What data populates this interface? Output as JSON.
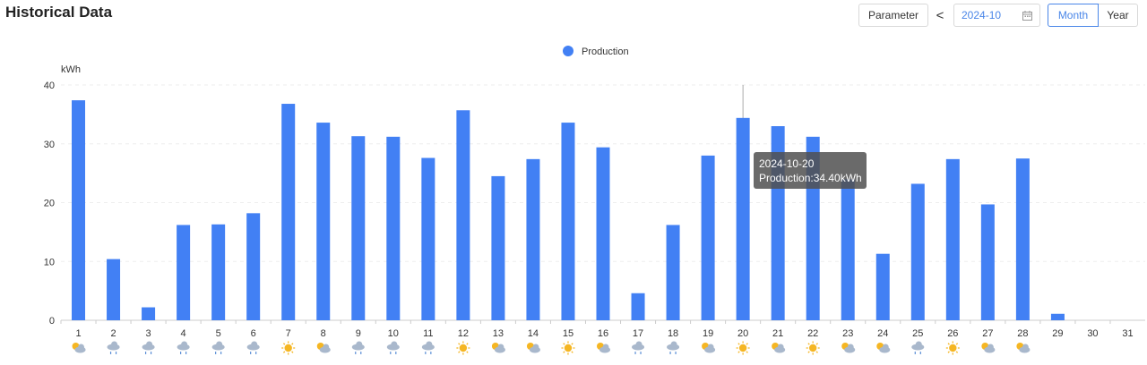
{
  "page": {
    "title": "Historical Data"
  },
  "toolbar": {
    "parameter_label": "Parameter",
    "prev_glyph": "<",
    "date_value": "2024-10",
    "calendar_icon": "calendar-icon",
    "month_label": "Month",
    "year_label": "Year",
    "accent_color": "#4a86e8"
  },
  "tooltip": {
    "date": "2024-10-20",
    "text": "Production:34.40kWh"
  },
  "chart_data": {
    "type": "bar",
    "legend": {
      "label": "Production",
      "position": "top-center"
    },
    "ylabel": "kWh",
    "ylim": [
      0,
      40
    ],
    "yticks": [
      0,
      10,
      20,
      30,
      40
    ],
    "grid": true,
    "bar_color": "#4280f4",
    "categories": [
      "1",
      "2",
      "3",
      "4",
      "5",
      "6",
      "7",
      "8",
      "9",
      "10",
      "11",
      "12",
      "13",
      "14",
      "15",
      "16",
      "17",
      "18",
      "19",
      "20",
      "21",
      "22",
      "23",
      "24",
      "25",
      "26",
      "27",
      "28",
      "29",
      "30",
      "31"
    ],
    "series": [
      {
        "name": "Production",
        "values": [
          37.4,
          10.4,
          2.2,
          16.2,
          16.3,
          18.2,
          36.8,
          33.6,
          31.3,
          31.2,
          27.6,
          35.7,
          24.5,
          27.4,
          33.6,
          29.4,
          4.6,
          16.2,
          28.0,
          34.4,
          33.0,
          31.2,
          24.0,
          11.3,
          23.2,
          27.4,
          19.7,
          27.5,
          1.1,
          0,
          0
        ]
      }
    ],
    "weather_icons": [
      "partly-cloudy",
      "rain",
      "rain",
      "rain",
      "rain",
      "rain",
      "sunny",
      "partly-cloudy",
      "rain",
      "rain",
      "rain",
      "sunny",
      "partly-cloudy",
      "partly-cloudy",
      "sunny",
      "partly-cloudy",
      "rain",
      "rain",
      "partly-cloudy",
      "sunny",
      "partly-cloudy",
      "sunny",
      "partly-cloudy",
      "partly-cloudy",
      "rain",
      "sunny",
      "partly-cloudy",
      "partly-cloudy",
      "",
      "",
      ""
    ],
    "highlight_index": 19
  }
}
